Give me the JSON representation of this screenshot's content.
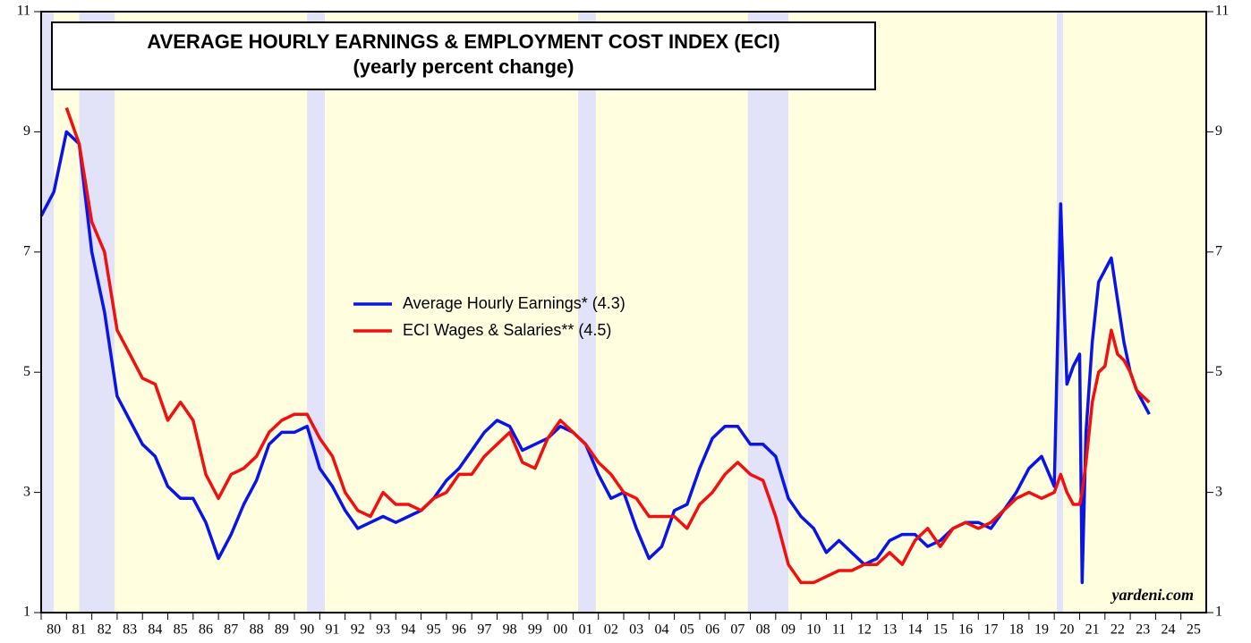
{
  "chart_data": {
    "type": "line",
    "title": "AVERAGE HOURLY EARNINGS & EMPLOYMENT COST INDEX (ECI)",
    "subtitle": "(yearly percent change)",
    "annotation": "yardeni.com",
    "x": [
      1980,
      1980.5,
      1981,
      1981.5,
      1982,
      1982.5,
      1983,
      1983.5,
      1984,
      1984.5,
      1985,
      1985.5,
      1986,
      1986.5,
      1987,
      1987.5,
      1988,
      1988.5,
      1989,
      1989.5,
      1990,
      1990.5,
      1991,
      1991.5,
      1992,
      1992.5,
      1993,
      1993.5,
      1994,
      1994.5,
      1995,
      1995.5,
      1996,
      1996.5,
      1997,
      1997.5,
      1998,
      1998.5,
      1999,
      1999.5,
      2000,
      2000.5,
      2001,
      2001.5,
      2002,
      2002.5,
      2003,
      2003.5,
      2004,
      2004.5,
      2005,
      2005.5,
      2006,
      2006.5,
      2007,
      2007.5,
      2008,
      2008.5,
      2009,
      2009.5,
      2010,
      2010.5,
      2011,
      2011.5,
      2012,
      2012.5,
      2013,
      2013.5,
      2014,
      2014.5,
      2015,
      2015.5,
      2016,
      2016.5,
      2017,
      2017.5,
      2018,
      2018.5,
      2019,
      2019.5,
      2020,
      2020.25,
      2020.5,
      2020.75,
      2021,
      2021.1,
      2021.25,
      2021.5,
      2021.75,
      2022,
      2022.25,
      2022.5,
      2022.75,
      2023,
      2023.25,
      2023.5,
      2023.75
    ],
    "series": [
      {
        "name": "Average Hourly Earnings* (4.3)",
        "color": "#0a14e6",
        "values": [
          7.6,
          8.0,
          9.0,
          8.8,
          7.0,
          6.0,
          4.6,
          4.2,
          3.8,
          3.6,
          3.1,
          2.9,
          2.9,
          2.5,
          1.9,
          2.3,
          2.8,
          3.2,
          3.8,
          4.0,
          4.0,
          4.1,
          3.4,
          3.1,
          2.7,
          2.4,
          2.5,
          2.6,
          2.5,
          2.6,
          2.7,
          2.9,
          3.2,
          3.4,
          3.7,
          4.0,
          4.2,
          4.1,
          3.7,
          3.8,
          3.9,
          4.1,
          4.0,
          3.8,
          3.3,
          2.9,
          3.0,
          2.4,
          1.9,
          2.1,
          2.7,
          2.8,
          3.4,
          3.9,
          4.1,
          4.1,
          3.8,
          3.8,
          3.6,
          2.9,
          2.6,
          2.4,
          2.0,
          2.2,
          2.0,
          1.8,
          1.9,
          2.2,
          2.3,
          2.3,
          2.1,
          2.2,
          2.4,
          2.5,
          2.5,
          2.4,
          2.7,
          3.0,
          3.4,
          3.6,
          3.1,
          7.8,
          4.8,
          5.1,
          5.3,
          1.5,
          4.0,
          5.5,
          6.5,
          6.7,
          6.9,
          6.2,
          5.5,
          5.0,
          4.7,
          4.5,
          4.3
        ]
      },
      {
        "name": "ECI Wages & Salaries** (4.5)",
        "color": "#f01010",
        "values": [
          null,
          null,
          9.4,
          8.8,
          7.5,
          7.0,
          5.7,
          5.3,
          4.9,
          4.8,
          4.2,
          4.5,
          4.2,
          3.3,
          2.9,
          3.3,
          3.4,
          3.6,
          4.0,
          4.2,
          4.3,
          4.3,
          3.9,
          3.6,
          3.0,
          2.7,
          2.6,
          3.0,
          2.8,
          2.8,
          2.7,
          2.9,
          3.0,
          3.3,
          3.3,
          3.6,
          3.8,
          4.0,
          3.5,
          3.4,
          3.9,
          4.2,
          4.0,
          3.8,
          3.5,
          3.3,
          3.0,
          2.9,
          2.6,
          2.6,
          2.6,
          2.4,
          2.8,
          3.0,
          3.3,
          3.5,
          3.3,
          3.2,
          2.6,
          1.8,
          1.5,
          1.5,
          1.6,
          1.7,
          1.7,
          1.8,
          1.8,
          2.0,
          1.8,
          2.2,
          2.4,
          2.1,
          2.4,
          2.5,
          2.4,
          2.5,
          2.7,
          2.9,
          3.0,
          2.9,
          3.0,
          3.3,
          3.0,
          2.8,
          2.8,
          3.0,
          3.5,
          4.5,
          5.0,
          5.1,
          5.7,
          5.3,
          5.2,
          5.0,
          4.7,
          4.6,
          4.5
        ]
      }
    ],
    "recessions": [
      [
        1980.0,
        1980.5
      ],
      [
        1981.5,
        1982.9
      ],
      [
        1990.5,
        1991.2
      ],
      [
        2001.2,
        2001.9
      ],
      [
        2007.9,
        2009.5
      ],
      [
        2020.1,
        2020.35
      ]
    ],
    "recession_color": "#e2e2f8",
    "background": "#ffffe0",
    "xlim": [
      1980,
      2026
    ],
    "ylim": [
      1,
      11
    ],
    "yticks": [
      1,
      3,
      5,
      7,
      9,
      11
    ],
    "xticks": [
      {
        "value": 1980.5,
        "label": "80"
      },
      {
        "value": 1981.5,
        "label": "81"
      },
      {
        "value": 1982.5,
        "label": "82"
      },
      {
        "value": 1983.5,
        "label": "83"
      },
      {
        "value": 1984.5,
        "label": "84"
      },
      {
        "value": 1985.5,
        "label": "85"
      },
      {
        "value": 1986.5,
        "label": "86"
      },
      {
        "value": 1987.5,
        "label": "87"
      },
      {
        "value": 1988.5,
        "label": "88"
      },
      {
        "value": 1989.5,
        "label": "89"
      },
      {
        "value": 1990.5,
        "label": "90"
      },
      {
        "value": 1991.5,
        "label": "91"
      },
      {
        "value": 1992.5,
        "label": "92"
      },
      {
        "value": 1993.5,
        "label": "93"
      },
      {
        "value": 1994.5,
        "label": "94"
      },
      {
        "value": 1995.5,
        "label": "95"
      },
      {
        "value": 1996.5,
        "label": "96"
      },
      {
        "value": 1997.5,
        "label": "97"
      },
      {
        "value": 1998.5,
        "label": "98"
      },
      {
        "value": 1999.5,
        "label": "99"
      },
      {
        "value": 2000.5,
        "label": "00"
      },
      {
        "value": 2001.5,
        "label": "01"
      },
      {
        "value": 2002.5,
        "label": "02"
      },
      {
        "value": 2003.5,
        "label": "03"
      },
      {
        "value": 2004.5,
        "label": "04"
      },
      {
        "value": 2005.5,
        "label": "05"
      },
      {
        "value": 2006.5,
        "label": "06"
      },
      {
        "value": 2007.5,
        "label": "07"
      },
      {
        "value": 2008.5,
        "label": "08"
      },
      {
        "value": 2009.5,
        "label": "09"
      },
      {
        "value": 2010.5,
        "label": "10"
      },
      {
        "value": 2011.5,
        "label": "11"
      },
      {
        "value": 2012.5,
        "label": "12"
      },
      {
        "value": 2013.5,
        "label": "13"
      },
      {
        "value": 2014.5,
        "label": "14"
      },
      {
        "value": 2015.5,
        "label": "15"
      },
      {
        "value": 2016.5,
        "label": "16"
      },
      {
        "value": 2017.5,
        "label": "17"
      },
      {
        "value": 2018.5,
        "label": "18"
      },
      {
        "value": 2019.5,
        "label": "19"
      },
      {
        "value": 2020.5,
        "label": "20"
      },
      {
        "value": 2021.5,
        "label": "21"
      },
      {
        "value": 2022.5,
        "label": "22"
      },
      {
        "value": 2023.5,
        "label": "23"
      },
      {
        "value": 2024.5,
        "label": "24"
      },
      {
        "value": 2025.5,
        "label": "25"
      }
    ]
  }
}
